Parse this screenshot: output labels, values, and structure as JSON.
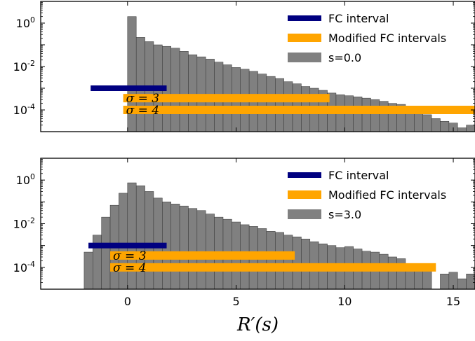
{
  "chart_data": [
    {
      "type": "bar",
      "panel": "top",
      "log_y": true,
      "xlim": [
        -4,
        16
      ],
      "ylim": [
        1e-05,
        10
      ],
      "xticks": [
        0,
        5,
        10,
        15
      ],
      "yticks": [
        {
          "value": 1,
          "base": "10",
          "exp": "0"
        },
        {
          "value": 0.01,
          "base": "10",
          "exp": "-2"
        },
        {
          "value": 0.0001,
          "base": "10",
          "exp": "-4"
        }
      ],
      "legend": {
        "position": "top-right",
        "entries": [
          {
            "label": "FC interval",
            "color": "#000080"
          },
          {
            "label": "Modified FC intervals",
            "color": "#ffa500"
          },
          {
            "label": "s=0.0",
            "color": "#808080"
          }
        ]
      },
      "bin_width": 0.4,
      "hist_color": "#808080",
      "hist_x": [
        0.0,
        0.4,
        0.8,
        1.2,
        1.6,
        2.0,
        2.4,
        2.8,
        3.2,
        3.6,
        4.0,
        4.4,
        4.8,
        5.2,
        5.6,
        6.0,
        6.4,
        6.8,
        7.2,
        7.6,
        8.0,
        8.4,
        8.8,
        9.2,
        9.6,
        10.0,
        10.4,
        10.8,
        11.2,
        11.6,
        12.0,
        12.4,
        12.8,
        13.2,
        13.6,
        14.0,
        14.4,
        14.8,
        15.2,
        15.6
      ],
      "hist_y": [
        2.0,
        0.22,
        0.14,
        0.1,
        0.085,
        0.07,
        0.05,
        0.035,
        0.028,
        0.022,
        0.016,
        0.012,
        0.009,
        0.0075,
        0.006,
        0.0045,
        0.0035,
        0.0028,
        0.002,
        0.0016,
        0.0012,
        0.001,
        0.0008,
        0.0006,
        0.0005,
        0.00045,
        0.0004,
        0.00035,
        0.0003,
        0.00025,
        0.0002,
        0.00018,
        0.00015,
        0.0001,
        6e-05,
        4e-05,
        3e-05,
        2.5e-05,
        1.5e-05,
        2e-05
      ],
      "fc_interval": {
        "x": [
          -1.7,
          1.8
        ],
        "y": 0.001
      },
      "modified_intervals": [
        {
          "label": "σ = 3",
          "x": [
            -0.2,
            9.3
          ],
          "y": 0.00035
        },
        {
          "label": "σ = 4",
          "x": [
            -0.2,
            16
          ],
          "y": 0.0001
        }
      ]
    },
    {
      "type": "bar",
      "panel": "bottom",
      "log_y": true,
      "xlim": [
        -4,
        16
      ],
      "ylim": [
        1e-05,
        10
      ],
      "xticks": [
        0,
        5,
        10,
        15
      ],
      "yticks": [
        {
          "value": 1,
          "base": "10",
          "exp": "0"
        },
        {
          "value": 0.01,
          "base": "10",
          "exp": "-2"
        },
        {
          "value": 0.0001,
          "base": "10",
          "exp": "-4"
        }
      ],
      "xlabel_math": "R′(s)",
      "legend": {
        "position": "top-right",
        "entries": [
          {
            "label": "FC interval",
            "color": "#000080"
          },
          {
            "label": "Modified FC intervals",
            "color": "#ffa500"
          },
          {
            "label": "s=3.0",
            "color": "#808080"
          }
        ]
      },
      "bin_width": 0.4,
      "hist_color": "#808080",
      "hist_x": [
        -2.0,
        -1.6,
        -1.2,
        -0.8,
        -0.4,
        0.0,
        0.4,
        0.8,
        1.2,
        1.6,
        2.0,
        2.4,
        2.8,
        3.2,
        3.6,
        4.0,
        4.4,
        4.8,
        5.2,
        5.6,
        6.0,
        6.4,
        6.8,
        7.2,
        7.6,
        8.0,
        8.4,
        8.8,
        9.2,
        9.6,
        10.0,
        10.4,
        10.8,
        11.2,
        11.6,
        12.0,
        12.4,
        12.8,
        13.2,
        13.6,
        14.0,
        14.4,
        14.8,
        15.2,
        15.6
      ],
      "hist_y": [
        0.0005,
        0.003,
        0.02,
        0.07,
        0.25,
        0.75,
        0.55,
        0.3,
        0.15,
        0.1,
        0.08,
        0.065,
        0.05,
        0.04,
        0.028,
        0.02,
        0.016,
        0.012,
        0.009,
        0.0075,
        0.006,
        0.0045,
        0.004,
        0.003,
        0.0025,
        0.002,
        0.0015,
        0.0012,
        0.001,
        0.0008,
        0.0009,
        0.0007,
        0.00055,
        0.0005,
        0.0004,
        0.0003,
        0.00025,
        0.00015,
        0.00012,
        9e-05,
        0,
        5e-05,
        6e-05,
        3e-05,
        5e-05
      ],
      "fc_interval": {
        "x": [
          -1.8,
          1.8
        ],
        "y": 0.001
      },
      "modified_intervals": [
        {
          "label": "σ = 3",
          "x": [
            -0.8,
            7.7
          ],
          "y": 0.00035
        },
        {
          "label": "σ = 4",
          "x": [
            -0.8,
            14.2
          ],
          "y": 0.0001
        }
      ]
    }
  ]
}
